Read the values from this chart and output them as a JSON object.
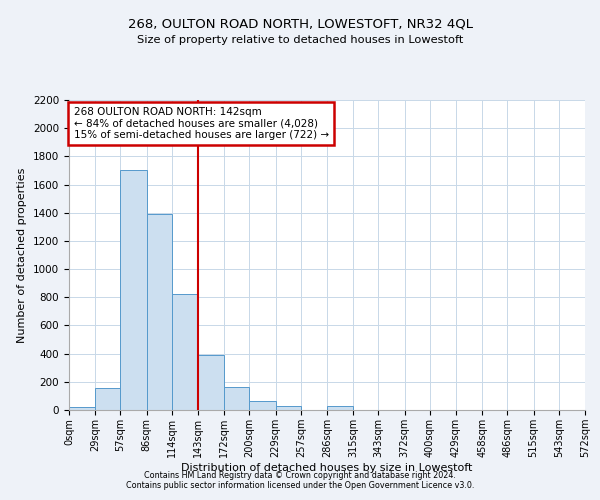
{
  "title": "268, OULTON ROAD NORTH, LOWESTOFT, NR32 4QL",
  "subtitle": "Size of property relative to detached houses in Lowestoft",
  "xlabel": "Distribution of detached houses by size in Lowestoft",
  "ylabel": "Number of detached properties",
  "bar_color": "#ccdff0",
  "bar_edge_color": "#5599cc",
  "bin_labels": [
    "0sqm",
    "29sqm",
    "57sqm",
    "86sqm",
    "114sqm",
    "143sqm",
    "172sqm",
    "200sqm",
    "229sqm",
    "257sqm",
    "286sqm",
    "315sqm",
    "343sqm",
    "372sqm",
    "400sqm",
    "429sqm",
    "458sqm",
    "486sqm",
    "515sqm",
    "543sqm",
    "572sqm"
  ],
  "bar_values": [
    20,
    155,
    1700,
    1390,
    825,
    390,
    165,
    65,
    30,
    0,
    25,
    0,
    0,
    0,
    0,
    0,
    0,
    0,
    0,
    0
  ],
  "ylim": [
    0,
    2200
  ],
  "annotation_title": "268 OULTON ROAD NORTH: 142sqm",
  "annotation_line1": "← 84% of detached houses are smaller (4,028)",
  "annotation_line2": "15% of semi-detached houses are larger (722) →",
  "footnote1": "Contains HM Land Registry data © Crown copyright and database right 2024.",
  "footnote2": "Contains public sector information licensed under the Open Government Licence v3.0.",
  "background_color": "#eef2f8",
  "plot_bg_color": "#ffffff",
  "grid_color": "#c8d8e8",
  "annotation_box_color": "#ffffff",
  "annotation_box_edge": "#cc0000",
  "vline_color": "#cc0000"
}
